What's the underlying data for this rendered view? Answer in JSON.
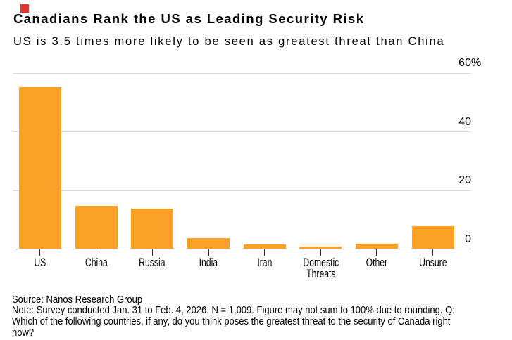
{
  "brand_color": "#e5342b",
  "title": "Canadians Rank the US as Leading Security Risk",
  "subtitle": "US is 3.5 times more likely to be seen as greatest threat than China",
  "footer": {
    "source_line": "Source: Nanos Research Group",
    "note_lines": [
      "Note: Survey conducted Jan. 31 to Feb. 4, 2026. N = 1,009. Figure may not sum to 100% due to rounding. Q:",
      "Which of the following countries, if any, do you think poses the greatest threat to the security of Canada right",
      "now?"
    ]
  },
  "chart_data": {
    "type": "bar",
    "title": "Canadians Rank the US as Leading Security Risk",
    "subtitle": "US is 3.5 times more likely to be seen as greatest threat than China",
    "categories": [
      "US",
      "China",
      "Russia",
      "India",
      "Iran",
      "Domestic Threats",
      "Other",
      "Unsure"
    ],
    "values": [
      55,
      14.7,
      13.7,
      3.6,
      1.5,
      0.7,
      1.6,
      7.7
    ],
    "unit": "%",
    "bar_color": "#fca028",
    "grid_color": "#d8d8d8",
    "axis_color": "#2e2e2e",
    "ylim": [
      0,
      60
    ],
    "yticks": [
      0,
      20,
      40,
      60
    ],
    "ytick_labels": [
      "0",
      "20",
      "40",
      "60%"
    ],
    "grid": "horizontal",
    "legend": "none",
    "value_axis_side": "right"
  }
}
